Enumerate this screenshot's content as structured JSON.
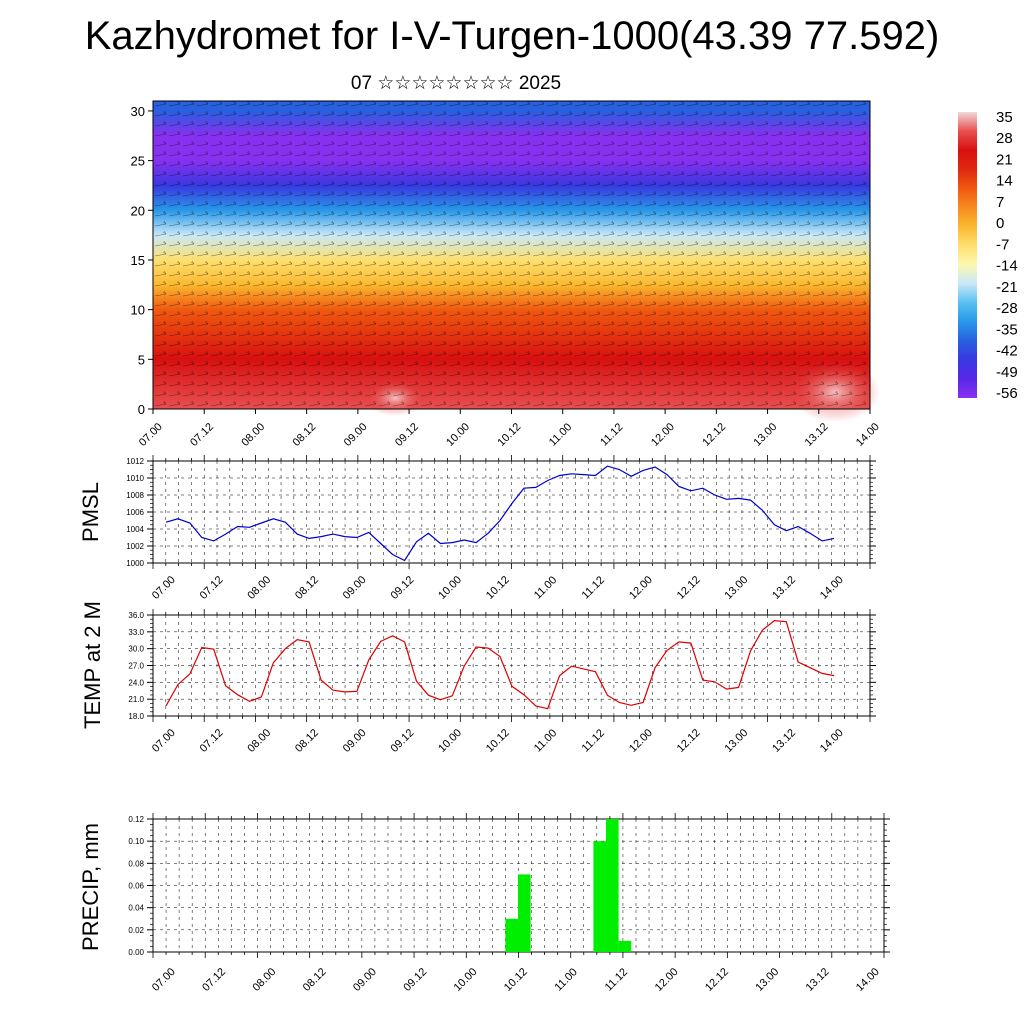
{
  "title": "Kazhydromet for I-V-Turgen-1000(43.39 77.592)",
  "subtitle": "07 ☆☆☆☆☆☆☆☆ 2025",
  "colors": {
    "pmsl_line": "#0000cc",
    "temp_line": "#dd0000",
    "precip_bar": "#00ee00"
  },
  "chart_data": [
    {
      "id": "cross-section",
      "type": "heatmap",
      "title": "",
      "xlabel": "",
      "ylabel": "",
      "x_tick_labels": [
        "07.00",
        "07.12",
        "08.00",
        "08.12",
        "09.00",
        "09.12",
        "10.00",
        "10.12",
        "11.00",
        "11.12",
        "12.00",
        "12.12",
        "13.00",
        "13.12",
        "14.00"
      ],
      "y_ticks": [
        0,
        5,
        10,
        15,
        20,
        25,
        30
      ],
      "ylim": [
        0,
        31
      ],
      "colorbar": {
        "labels": [
          35,
          28,
          21,
          14,
          7,
          0,
          -7,
          -14,
          -21,
          -28,
          -35,
          -42,
          -49,
          -56
        ],
        "colors_warm_to_cold": [
          "#f4d8d8",
          "#e85050",
          "#d81010",
          "#e02810",
          "#f05a10",
          "#f78a20",
          "#fbb830",
          "#fde070",
          "#fcf8b0",
          "#c8e8f8",
          "#58c0f0",
          "#2898e8",
          "#2860e0",
          "#3838e0",
          "#5828e8",
          "#8830f0"
        ]
      },
      "bands_by_height": [
        {
          "height": 0,
          "temp": 30
        },
        {
          "height": 5,
          "temp": 22
        },
        {
          "height": 10,
          "temp": 10
        },
        {
          "height": 15,
          "temp": -8
        },
        {
          "height": 20,
          "temp": -30
        },
        {
          "height": 25,
          "temp": -55
        },
        {
          "height": 30,
          "temp": -40
        }
      ],
      "grid": false
    },
    {
      "id": "pmsl",
      "type": "line",
      "ylabel": "PMSL",
      "ylim": [
        1000,
        1012
      ],
      "y_ticks": [
        "1000",
        "1002",
        "1004",
        "1006",
        "1008",
        "1010",
        "1012"
      ],
      "x_tick_labels": [
        "07.00",
        "07.12",
        "08.00",
        "08.12",
        "09.00",
        "09.12",
        "10.00",
        "10.12",
        "11.00",
        "11.12",
        "12.00",
        "12.12",
        "13.00",
        "13.12",
        "14.00"
      ],
      "grid": true,
      "series": [
        {
          "values": [
            1004.8,
            1005.2,
            1004.7,
            1003.0,
            1002.6,
            1003.4,
            1004.3,
            1004.2,
            1004.7,
            1005.2,
            1004.8,
            1003.4,
            1002.9,
            1003.1,
            1003.4,
            1003.1,
            1003.0,
            1003.6,
            1002.3,
            1001.0,
            1000.3,
            1002.5,
            1003.5,
            1002.3,
            1002.4,
            1002.7,
            1002.4,
            1003.5,
            1005.0,
            1007.0,
            1008.8,
            1008.9,
            1009.7,
            1010.3,
            1010.5,
            1010.4,
            1010.3,
            1011.4,
            1011.0,
            1010.2,
            1010.9,
            1011.3,
            1010.4,
            1009.0,
            1008.5,
            1008.8,
            1008.0,
            1007.5,
            1007.6,
            1007.4,
            1006.2,
            1004.5,
            1003.8,
            1004.3,
            1003.5,
            1002.6,
            1002.9
          ]
        }
      ]
    },
    {
      "id": "temp",
      "type": "line",
      "ylabel": "TEMP at 2 M",
      "ylim": [
        18,
        36
      ],
      "y_ticks": [
        "18.0",
        "21.0",
        "24.0",
        "27.0",
        "30.0",
        "33.0",
        "36.0"
      ],
      "x_tick_labels": [
        "07.00",
        "07.12",
        "08.00",
        "08.12",
        "09.00",
        "09.12",
        "10.00",
        "10.12",
        "11.00",
        "11.12",
        "12.00",
        "12.12",
        "13.00",
        "13.12",
        "14.00"
      ],
      "grid": true,
      "series": [
        {
          "values": [
            19.8,
            23.6,
            25.5,
            30.2,
            29.9,
            23.4,
            21.8,
            20.6,
            21.4,
            27.5,
            30.0,
            31.6,
            31.2,
            24.4,
            22.6,
            22.3,
            22.4,
            28.0,
            31.3,
            32.3,
            31.2,
            24.2,
            21.7,
            20.9,
            21.6,
            26.9,
            30.3,
            30.1,
            28.6,
            23.3,
            21.8,
            19.8,
            19.3,
            25.2,
            26.9,
            26.4,
            25.9,
            21.7,
            20.4,
            19.9,
            20.4,
            26.6,
            29.7,
            31.2,
            31.0,
            24.4,
            24.1,
            22.8,
            23.1,
            29.6,
            33.3,
            35.0,
            34.8,
            27.6,
            26.6,
            25.6,
            25.2
          ]
        }
      ]
    },
    {
      "id": "precip",
      "type": "bar",
      "ylabel": "PRECIP, mm",
      "ylim": [
        0,
        0.12
      ],
      "y_ticks": [
        "0.00",
        "0.02",
        "0.04",
        "0.06",
        "0.08",
        "0.10",
        "0.12"
      ],
      "x_tick_labels": [
        "07.00",
        "07.12",
        "08.00",
        "08.12",
        "09.00",
        "09.12",
        "10.00",
        "10.12",
        "11.00",
        "11.12",
        "12.00",
        "12.12",
        "13.00",
        "13.12",
        "14.00"
      ],
      "grid": true,
      "bars": [
        {
          "t": 27.5,
          "value": 0.03
        },
        {
          "t": 28.5,
          "value": 0.07
        },
        {
          "t": 34.5,
          "value": 0.1
        },
        {
          "t": 35.5,
          "value": 0.12
        },
        {
          "t": 36.5,
          "value": 0.01
        }
      ]
    }
  ]
}
